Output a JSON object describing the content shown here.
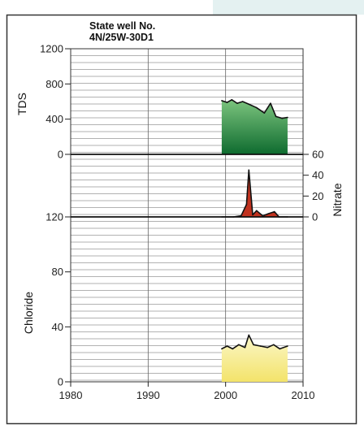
{
  "title_line1": "State well No.",
  "title_line2": "4N/25W-30D1",
  "colors": {
    "tds_fill_top": "#7cc47e",
    "tds_fill_bottom": "#0e6b2f",
    "nitrate_fill": "#c0321f",
    "chloride_fill_top": "#fbf7c8",
    "chloride_fill_bottom": "#f3e36a",
    "frame_bg": "#e4f1f1"
  },
  "chart_data": [
    {
      "type": "area",
      "ylabel": "TDS",
      "ylim": [
        0,
        1200
      ],
      "yticks": [
        "0",
        "400",
        "800",
        "1200"
      ],
      "x": [
        1999.5,
        2000.2,
        2000.8,
        2001.5,
        2002.2,
        2003.0,
        2004.0,
        2005.0,
        2005.8,
        2006.5,
        2007.3,
        2008.0
      ],
      "values": [
        610,
        590,
        620,
        580,
        600,
        570,
        530,
        470,
        580,
        430,
        410,
        420
      ],
      "grid": true
    },
    {
      "type": "area",
      "ylabel": "Nitrate",
      "ylim": [
        0,
        60
      ],
      "yticks": [
        "0",
        "20",
        "40",
        "60"
      ],
      "axis_side": "right",
      "x": [
        1999.5,
        2001.0,
        2002.0,
        2002.7,
        2003.0,
        2003.5,
        2004.0,
        2004.8,
        2005.5,
        2006.3,
        2006.9,
        2008.0
      ],
      "values": [
        0,
        0,
        1,
        12,
        45,
        2,
        6,
        1,
        3,
        5,
        0,
        0
      ],
      "grid": true
    },
    {
      "type": "area",
      "ylabel": "Chloride",
      "ylim": [
        0,
        120
      ],
      "yticks": [
        "0",
        "40",
        "80",
        "120"
      ],
      "x": [
        1999.5,
        2000.2,
        2000.9,
        2001.7,
        2002.5,
        2003.0,
        2003.6,
        2004.5,
        2005.4,
        2006.2,
        2007.0,
        2008.0
      ],
      "values": [
        24,
        26,
        24,
        27,
        25,
        34,
        27,
        26,
        25,
        27,
        24,
        26
      ],
      "grid": true
    }
  ],
  "xaxis": {
    "xlim": [
      1980,
      2010
    ],
    "ticks": [
      "1980",
      "1990",
      "2000",
      "2010"
    ]
  }
}
